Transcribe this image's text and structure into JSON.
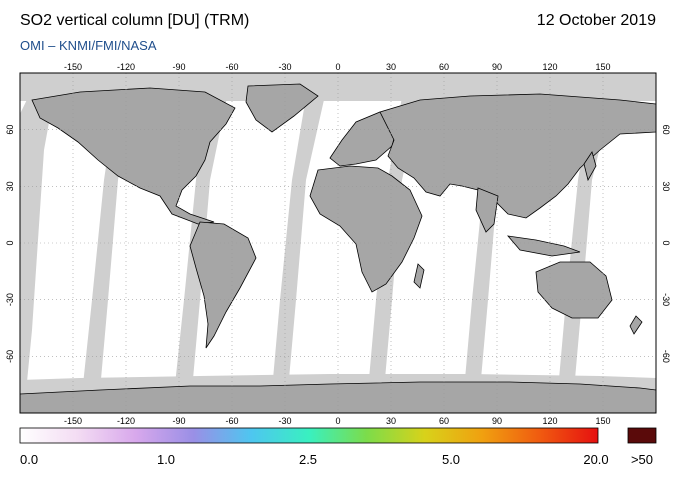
{
  "header": {
    "title": "SO2 vertical column [DU] (TRM)",
    "date": "12 October 2019",
    "credit": "OMI  –  KNMI/FMI/NASA"
  },
  "map": {
    "projection": "plate-carree",
    "lon_range": [
      -180,
      180
    ],
    "lat_range": [
      -90,
      90
    ],
    "lon_ticks": [
      -150,
      -120,
      -90,
      -60,
      -30,
      0,
      30,
      60,
      90,
      120,
      150
    ],
    "lat_ticks": [
      60,
      30,
      0,
      -30,
      -60
    ],
    "colors": {
      "land": "#a6a6a6",
      "no_data_swath": "#cfcfcf",
      "ocean_low_so2": "#ffffff",
      "coastline": "#000000"
    }
  },
  "colorbar": {
    "labels": [
      "0.0",
      "1.0",
      "2.5",
      "5.0",
      "20.0"
    ],
    "overflow_label": ">50",
    "overflow_color": "#5a0a0a",
    "gradient_colors": [
      "#ffffff",
      "#f3dcf3",
      "#d8a8ec",
      "#9a8fe6",
      "#4ec6f0",
      "#39f0c0",
      "#7cdc4a",
      "#d8d21a",
      "#f0a010",
      "#f05a10",
      "#e61010"
    ]
  }
}
